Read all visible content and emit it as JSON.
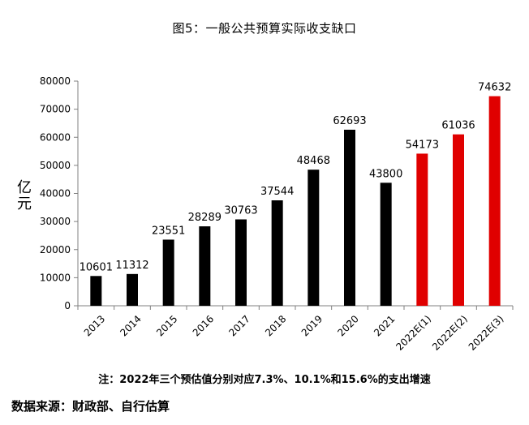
{
  "chart_data": {
    "type": "bar",
    "title": "图5：一般公共预算实际收支缺口",
    "ylabel": "亿元",
    "ylabel_chars": [
      "亿",
      "元"
    ],
    "ylim": [
      0,
      80000
    ],
    "ytick_step": 10000,
    "yticks": [
      "0",
      "10000",
      "20000",
      "30000",
      "40000",
      "50000",
      "60000",
      "70000",
      "80000"
    ],
    "categories": [
      "2013",
      "2014",
      "2015",
      "2016",
      "2017",
      "2018",
      "2019",
      "2020",
      "2021",
      "2022E(1)",
      "2022E(2)",
      "2022E(3)"
    ],
    "values": [
      10601,
      11312,
      23551,
      28289,
      30763,
      37544,
      48468,
      62693,
      43800,
      54173,
      61036,
      74632
    ],
    "colors": [
      "#000000",
      "#000000",
      "#000000",
      "#000000",
      "#000000",
      "#000000",
      "#000000",
      "#000000",
      "#000000",
      "#e00000",
      "#e00000",
      "#e00000"
    ],
    "grid": false,
    "legend": "none"
  },
  "note": "注：2022年三个预估值分别对应7.3%、10.1%和15.6%的支出增速",
  "source": "数据来源：财政部、自行估算"
}
